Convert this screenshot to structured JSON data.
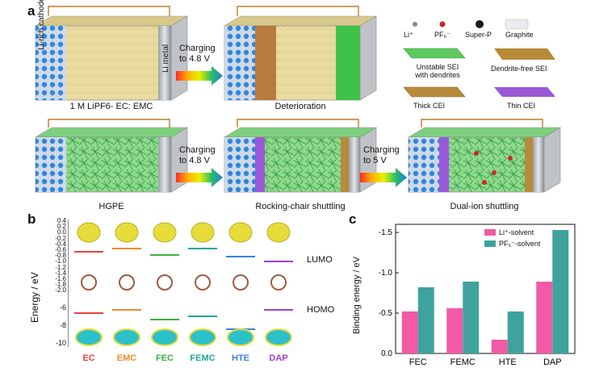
{
  "panel_a": {
    "letter": "a",
    "cathode_label": "Li-rich cathode",
    "anode_label": "Li metal",
    "cells": [
      {
        "caption": "1 M LiPF6- EC: EMC"
      },
      {
        "caption": "Deterioration"
      },
      {
        "caption": "HGPE"
      },
      {
        "caption": "Rocking-chair shuttling"
      },
      {
        "caption": "Dual-ion shuttling"
      }
    ],
    "arrows": [
      {
        "line1": "Charging",
        "line2": "to 4.8 V"
      },
      {
        "line1": "Charging",
        "line2": "to 4.8 V"
      },
      {
        "line1": "Charging",
        "line2": "to 5 V"
      }
    ],
    "legend": {
      "li": "Li⁺",
      "pf6": "PF₆⁻",
      "superp": "Super-P",
      "graphite": "Graphite",
      "unstable_sei_1": "Unstable SEI",
      "unstable_sei_2": "with dendrites",
      "dendrite_free": "Dendrite-free  SEI",
      "thick_cei": "Thick CEI",
      "thin_cei": "Thin CEI"
    }
  },
  "panel_b": {
    "letter": "b",
    "ylabel": "Energy / eV",
    "ticks_top": [
      "0.4",
      "0.2",
      "0.0",
      "-0.2",
      "-0.4",
      "-0.6",
      "-0.8",
      "-1.0",
      "-1.2",
      "-1.4",
      "-1.6",
      "-1.8",
      "-2.0"
    ],
    "ticks_bottom": [
      "-6",
      "-8",
      "-10"
    ],
    "lumo": "LUMO",
    "homo": "HOMO",
    "molecules": [
      {
        "name": "EC",
        "color": "#e8413c"
      },
      {
        "name": "EMC",
        "color": "#f08a2c"
      },
      {
        "name": "FEC",
        "color": "#3cb043"
      },
      {
        "name": "FEMC",
        "color": "#1fa69a"
      },
      {
        "name": "HTE",
        "color": "#3d7fe0"
      },
      {
        "name": "DAP",
        "color": "#9b3fd6"
      }
    ]
  },
  "panel_c": {
    "letter": "c",
    "chart_data": {
      "type": "bar",
      "categories": [
        "FEC",
        "FEMC",
        "HTE",
        "DAP"
      ],
      "series": [
        {
          "name": "Li⁺-solvent",
          "values": [
            -0.52,
            -0.56,
            -0.17,
            -0.89
          ],
          "color": "#f25aa6"
        },
        {
          "name": "PF₆⁻-solvent",
          "values": [
            -0.82,
            -0.89,
            -0.52,
            -1.53
          ],
          "color": "#3ea39c"
        }
      ],
      "ylabel": "Binding energy / eV",
      "ylim": [
        0,
        -1.5
      ],
      "yticks": [
        "0.0",
        "-0.5",
        "-1.0",
        "-1.5"
      ],
      "legend": "top-right"
    }
  }
}
